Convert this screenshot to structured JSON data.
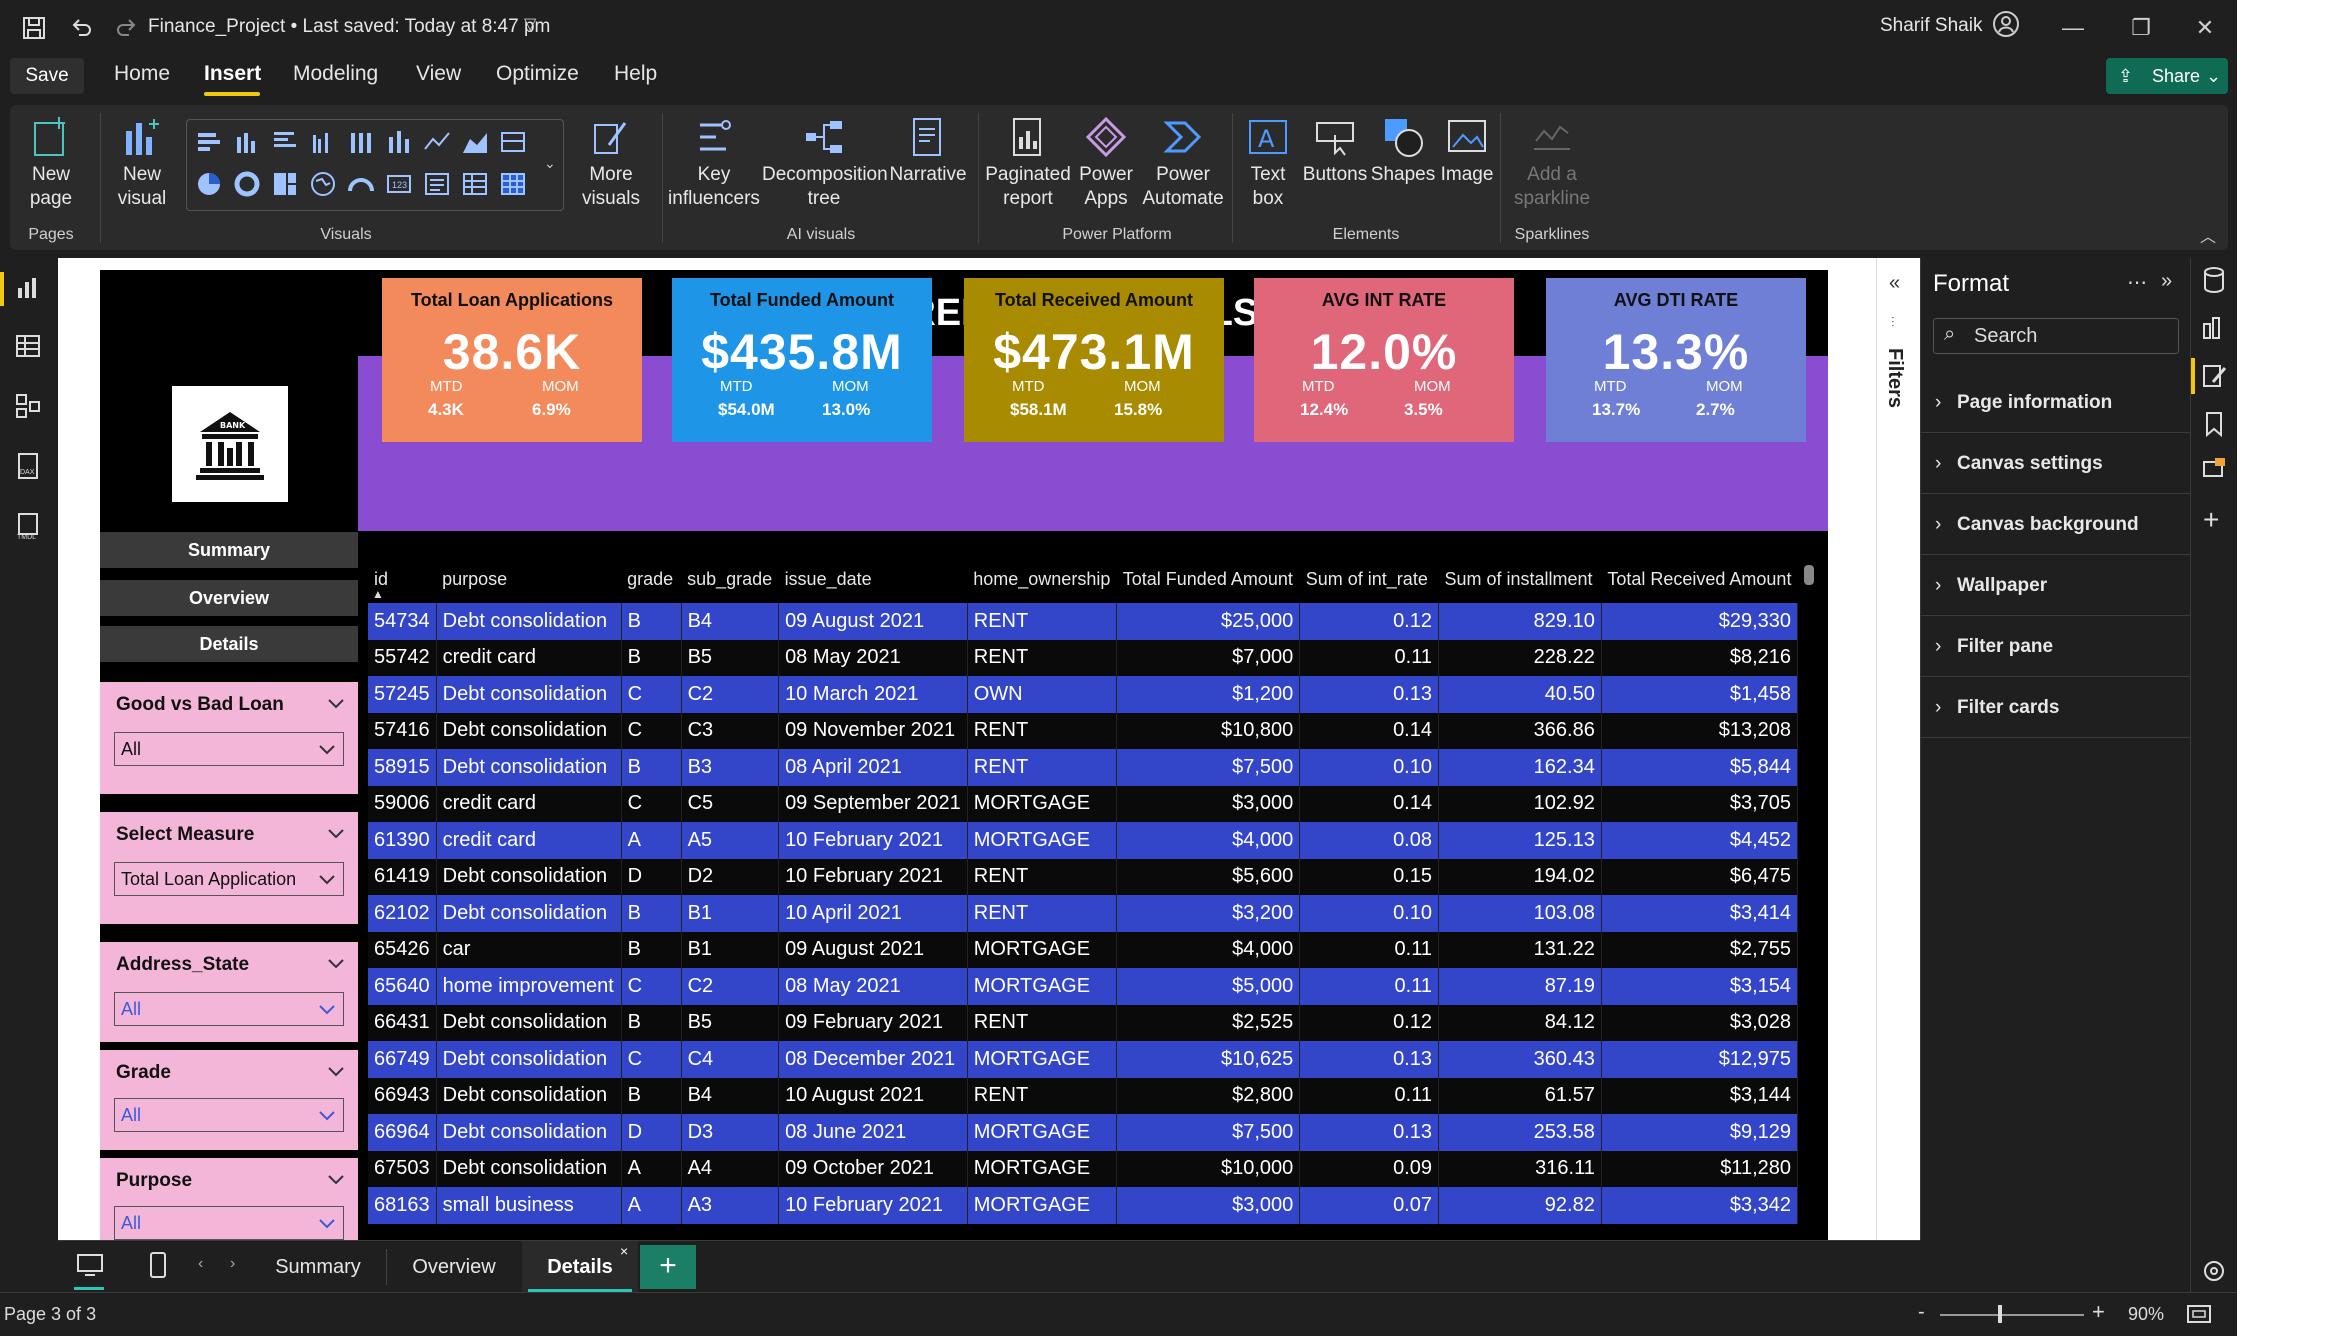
{
  "titlebar": {
    "file_title": "Finance_Project • Last saved: Today at 8:47 pm",
    "user_name": "Sharif Shaik"
  },
  "menu": {
    "save_label": "Save",
    "tabs": [
      "Home",
      "Insert",
      "Modeling",
      "View",
      "Optimize",
      "Help"
    ],
    "active_tab": "Insert",
    "share_label": "Share"
  },
  "ribbon": {
    "pages": {
      "new_page": "New page",
      "group": "Pages"
    },
    "visuals": {
      "new_visual": "New visual",
      "more_visuals": "More visuals",
      "group": "Visuals"
    },
    "ai": {
      "key": "Key influencers",
      "decomp": "Decomposition tree",
      "narrative": "Narrative",
      "group": "AI visuals"
    },
    "platform": {
      "paginated": "Paginated report",
      "apps": "Power Apps",
      "automate": "Power Automate",
      "group": "Power Platform"
    },
    "elements": {
      "textbox": "Text box",
      "buttons": "Buttons",
      "shapes": "Shapes",
      "image": "Image",
      "group": "Elements"
    },
    "sparklines": {
      "add": "Add a sparkline",
      "group": "Sparklines"
    }
  },
  "report": {
    "title": "BANK LOAN REPORT | DETAILS",
    "logo_text": "BANK",
    "nav": {
      "summary": "Summary",
      "overview": "Overview",
      "details": "Details"
    },
    "slicers": [
      {
        "title": "Good vs Bad Loan",
        "value": "All"
      },
      {
        "title": "Select Measure",
        "value": "Total Loan Application"
      },
      {
        "title": "Address_State",
        "value": "All"
      },
      {
        "title": "Grade",
        "value": "All"
      },
      {
        "title": "Purpose",
        "value": "All"
      }
    ],
    "kpis": [
      {
        "title": "Total Loan Applications",
        "value": "38.6K",
        "mtd_label": "MTD",
        "mom_label": "MOM",
        "mtd": "4.3K",
        "mom": "6.9%",
        "color": "#f28a5c"
      },
      {
        "title": "Total Funded Amount",
        "value": "$435.8M",
        "mtd_label": "MTD",
        "mom_label": "MOM",
        "mtd": "$54.0M",
        "mom": "13.0%",
        "color": "#1e95e6"
      },
      {
        "title": "Total Received Amount",
        "value": "$473.1M",
        "mtd_label": "MTD",
        "mom_label": "MOM",
        "mtd": "$58.1M",
        "mom": "15.8%",
        "color": "#a88b00"
      },
      {
        "title": "AVG INT RATE",
        "value": "12.0%",
        "mtd_label": "MTD",
        "mom_label": "MOM",
        "mtd": "12.4%",
        "mom": "3.5%",
        "color": "#e0667a"
      },
      {
        "title": "AVG DTI RATE",
        "value": "13.3%",
        "mtd_label": "MTD",
        "mom_label": "MOM",
        "mtd": "13.7%",
        "mom": "2.7%",
        "color": "#6f7fd6"
      }
    ],
    "table": {
      "columns": [
        "id",
        "purpose",
        "grade",
        "sub_grade",
        "issue_date",
        "home_ownership",
        "Total Funded Amount",
        "Sum of int_rate",
        "Sum of installment",
        "Total Received Amount"
      ],
      "rows": [
        [
          "54734",
          "Debt consolidation",
          "B",
          "B4",
          "09 August 2021",
          "RENT",
          "$25,000",
          "0.12",
          "829.10",
          "$29,330"
        ],
        [
          "55742",
          "credit card",
          "B",
          "B5",
          "08 May 2021",
          "RENT",
          "$7,000",
          "0.11",
          "228.22",
          "$8,216"
        ],
        [
          "57245",
          "Debt consolidation",
          "C",
          "C2",
          "10 March 2021",
          "OWN",
          "$1,200",
          "0.13",
          "40.50",
          "$1,458"
        ],
        [
          "57416",
          "Debt consolidation",
          "C",
          "C3",
          "09 November 2021",
          "RENT",
          "$10,800",
          "0.14",
          "366.86",
          "$13,208"
        ],
        [
          "58915",
          "Debt consolidation",
          "B",
          "B3",
          "08 April 2021",
          "RENT",
          "$7,500",
          "0.10",
          "162.34",
          "$5,844"
        ],
        [
          "59006",
          "credit card",
          "C",
          "C5",
          "09 September 2021",
          "MORTGAGE",
          "$3,000",
          "0.14",
          "102.92",
          "$3,705"
        ],
        [
          "61390",
          "credit card",
          "A",
          "A5",
          "10 February 2021",
          "MORTGAGE",
          "$4,000",
          "0.08",
          "125.13",
          "$4,452"
        ],
        [
          "61419",
          "Debt consolidation",
          "D",
          "D2",
          "10 February 2021",
          "RENT",
          "$5,600",
          "0.15",
          "194.02",
          "$6,475"
        ],
        [
          "62102",
          "Debt consolidation",
          "B",
          "B1",
          "10 April 2021",
          "RENT",
          "$3,200",
          "0.10",
          "103.08",
          "$3,414"
        ],
        [
          "65426",
          "car",
          "B",
          "B1",
          "09 August 2021",
          "MORTGAGE",
          "$4,000",
          "0.11",
          "131.22",
          "$2,755"
        ],
        [
          "65640",
          "home improvement",
          "C",
          "C2",
          "08 May 2021",
          "MORTGAGE",
          "$5,000",
          "0.11",
          "87.19",
          "$3,154"
        ],
        [
          "66431",
          "Debt consolidation",
          "B",
          "B5",
          "09 February 2021",
          "RENT",
          "$2,525",
          "0.12",
          "84.12",
          "$3,028"
        ],
        [
          "66749",
          "Debt consolidation",
          "C",
          "C4",
          "08 December 2021",
          "MORTGAGE",
          "$10,625",
          "0.13",
          "360.43",
          "$12,975"
        ],
        [
          "66943",
          "Debt consolidation",
          "B",
          "B4",
          "10 August 2021",
          "RENT",
          "$2,800",
          "0.11",
          "61.57",
          "$3,144"
        ],
        [
          "66964",
          "Debt consolidation",
          "D",
          "D3",
          "08 June 2021",
          "MORTGAGE",
          "$7,500",
          "0.13",
          "253.58",
          "$9,129"
        ],
        [
          "67503",
          "Debt consolidation",
          "A",
          "A4",
          "09 October 2021",
          "MORTGAGE",
          "$10,000",
          "0.09",
          "316.11",
          "$11,280"
        ],
        [
          "68163",
          "small business",
          "A",
          "A3",
          "10 February 2021",
          "MORTGAGE",
          "$3,000",
          "0.07",
          "92.82",
          "$3,342"
        ]
      ]
    }
  },
  "filters_label": "Filters",
  "format_pane": {
    "title": "Format",
    "search_placeholder": "Search",
    "sections": [
      "Page information",
      "Canvas settings",
      "Canvas background",
      "Wallpaper",
      "Filter pane",
      "Filter cards"
    ]
  },
  "page_tabs": [
    "Summary",
    "Overview",
    "Details"
  ],
  "active_page": "Details",
  "status": {
    "page_indicator": "Page 3 of 3",
    "zoom": "90%"
  },
  "colors": {
    "accent": "#f2c811",
    "table_row_blue": "#3346c9",
    "kpi_band": "#8a4dd1",
    "slicer_pink": "#f4b6d8"
  }
}
